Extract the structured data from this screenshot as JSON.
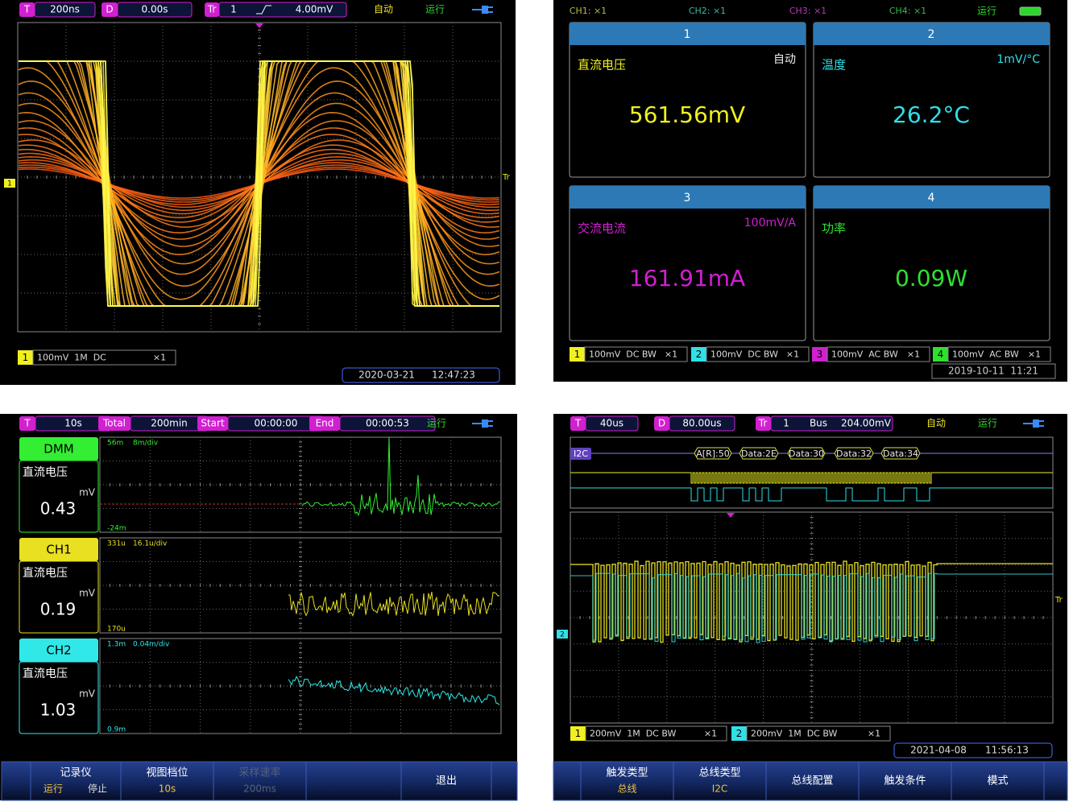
{
  "oscilloscope": {
    "top_bar": {
      "timebase_tag": "T",
      "timebase": "200ns",
      "delay_tag": "D",
      "delay": "0.00s",
      "trigger_tag": "Tr",
      "trigger_source": "1",
      "trigger_level": "4.00mV",
      "trigger_mode": "自动",
      "run_state": "运行"
    },
    "channel_marker": "1",
    "trigger_marker": "Tr",
    "channel": {
      "number": "1",
      "settings": "100mV  1M  DC",
      "probe": "×1"
    },
    "date": "2020-03-21",
    "time": "12:47:23"
  },
  "multimeter": {
    "header": {
      "ch1": "CH1: ×1",
      "ch2": "CH2: ×1",
      "ch3": "CH3: ×1",
      "ch4": "CH4: ×1",
      "run_state": "运行"
    },
    "meters": [
      {
        "number": "1",
        "measurement": "直流电压",
        "mode": "自动",
        "reading": "561.56mV"
      },
      {
        "number": "2",
        "measurement": "温度",
        "mode": "1mV/°C",
        "reading": "26.2°C"
      },
      {
        "number": "3",
        "measurement": "交流电流",
        "mode": "100mV/A",
        "reading": "161.91mA"
      },
      {
        "number": "4",
        "measurement": "功率",
        "reading": "0.09W"
      }
    ],
    "channels": [
      {
        "number": "1",
        "settings": "100mV  DC BW",
        "probe": "×1"
      },
      {
        "number": "2",
        "settings": "100mV  DC BW",
        "probe": "×1"
      },
      {
        "number": "3",
        "settings": "100mV  AC BW",
        "probe": "×1"
      },
      {
        "number": "4",
        "settings": "100mV  AC BW",
        "probe": "×1"
      }
    ],
    "datetime": "2019-10-11  11:21"
  },
  "recorder": {
    "top_bar": {
      "timebase_tag": "T",
      "timebase": "10s",
      "total_tag": "Total",
      "total": "200min",
      "start_tag": "Start",
      "start": "00:00:00",
      "end_tag": "End",
      "end": "00:00:53",
      "run_state": "运行"
    },
    "tracks": [
      {
        "name": "DMM",
        "measurement": "直流电压",
        "unit": "mV",
        "reading": "0.43",
        "top": "56m",
        "scale": "8m/div",
        "bottom": "-24m"
      },
      {
        "name": "CH1",
        "measurement": "直流电压",
        "unit": "mV",
        "reading": "0.19",
        "top": "331u",
        "scale": "16.1u/div",
        "bottom": "170u"
      },
      {
        "name": "CH2",
        "measurement": "直流电压",
        "unit": "mV",
        "reading": "1.03",
        "top": "1.3m",
        "scale": "0.04m/div",
        "bottom": "0.9m"
      }
    ],
    "menu": [
      {
        "title": "记录仪",
        "options": [
          "运行",
          "停止"
        ]
      },
      {
        "title": "视图档位",
        "value": "10s"
      },
      {
        "title": "采样速率",
        "value": "200ms"
      },
      {
        "title": "退出"
      }
    ]
  },
  "bus_decode": {
    "top_bar": {
      "timebase_tag": "T",
      "timebase": "40us",
      "delay_tag": "D",
      "delay": "80.00us",
      "trigger_tag": "Tr",
      "trigger_source": "1",
      "trigger_type": "Bus",
      "trigger_level": "204.00mV",
      "trigger_mode": "自动",
      "run_state": "运行"
    },
    "bus_label": "I2C",
    "frames": [
      "A[R]:50",
      "Data:2E",
      "Data:30",
      "Data:32",
      "Data:34"
    ],
    "channel_marker": "2",
    "trigger_marker": "Tr",
    "channels": [
      {
        "number": "1",
        "settings": "200mV  1M  DC BW",
        "probe": "×1"
      },
      {
        "number": "2",
        "settings": "200mV  1M  DC BW",
        "probe": "×1"
      }
    ],
    "date": "2021-04-08",
    "time": "11:56:13",
    "menu": [
      {
        "title": "触发类型",
        "value": "总线"
      },
      {
        "title": "总线类型",
        "value": "I2C"
      },
      {
        "title": "总线配置"
      },
      {
        "title": "触发条件"
      },
      {
        "title": "模式"
      }
    ]
  }
}
